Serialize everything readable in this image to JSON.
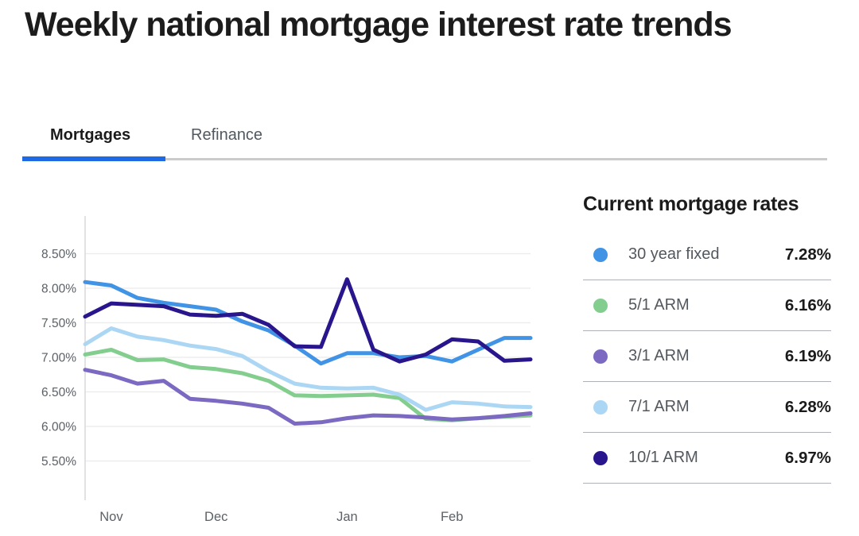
{
  "page": {
    "title": "Weekly national mortgage interest rate trends"
  },
  "tabs": [
    {
      "label": "Mortgages",
      "active": true
    },
    {
      "label": "Refinance",
      "active": false
    }
  ],
  "legend": {
    "title": "Current mortgage rates"
  },
  "chart_data": {
    "type": "line",
    "title": "Weekly national mortgage interest rate trends",
    "grid": true,
    "legend_position": "right",
    "x_axis": {
      "unit": "week",
      "num_points": 18,
      "labels": [
        {
          "label": "Nov",
          "point_index": 1
        },
        {
          "label": "Dec",
          "point_index": 5
        },
        {
          "label": "Jan",
          "point_index": 10
        },
        {
          "label": "Feb",
          "point_index": 14
        }
      ]
    },
    "y_axis": {
      "unit": "%",
      "range": [
        5.5,
        8.5
      ],
      "tick_values": [
        8.5,
        8.0,
        7.5,
        7.0,
        6.5,
        6.0,
        5.5
      ],
      "tick_labels": [
        "8.50%",
        "8.00%",
        "7.50%",
        "7.00%",
        "6.50%",
        "6.00%",
        "5.50%"
      ]
    },
    "series": [
      {
        "name": "30 year fixed",
        "color": "#4193e6",
        "current": "7.28%",
        "values": [
          8.09,
          8.04,
          7.86,
          7.79,
          7.74,
          7.69,
          7.52,
          7.39,
          7.17,
          6.91,
          7.06,
          7.06,
          7.0,
          7.02,
          6.94,
          7.11,
          7.28,
          7.28
        ]
      },
      {
        "name": "5/1 ARM",
        "color": "#83ce8e",
        "current": "6.16%",
        "values": [
          7.04,
          7.11,
          6.96,
          6.97,
          6.86,
          6.83,
          6.77,
          6.66,
          6.45,
          6.44,
          6.45,
          6.46,
          6.41,
          6.11,
          6.09,
          6.12,
          6.14,
          6.16
        ]
      },
      {
        "name": "3/1 ARM",
        "color": "#7c69c1",
        "current": "6.19%",
        "values": [
          6.82,
          6.74,
          6.62,
          6.66,
          6.4,
          6.37,
          6.33,
          6.27,
          6.04,
          6.06,
          6.12,
          6.16,
          6.15,
          6.13,
          6.1,
          6.12,
          6.15,
          6.19
        ]
      },
      {
        "name": "7/1 ARM",
        "color": "#acd7f4",
        "current": "6.28%",
        "values": [
          7.19,
          7.42,
          7.3,
          7.25,
          7.17,
          7.12,
          7.02,
          6.8,
          6.62,
          6.56,
          6.55,
          6.56,
          6.46,
          6.24,
          6.35,
          6.33,
          6.29,
          6.28
        ]
      },
      {
        "name": "10/1 ARM",
        "color": "#29168d",
        "current": "6.97%",
        "values": [
          7.59,
          7.78,
          7.76,
          7.74,
          7.62,
          7.6,
          7.63,
          7.47,
          7.16,
          7.15,
          8.13,
          7.11,
          6.94,
          7.04,
          7.26,
          7.23,
          6.95,
          6.97
        ]
      }
    ],
    "draw_order": [
      0,
      1,
      2,
      3,
      4
    ]
  }
}
